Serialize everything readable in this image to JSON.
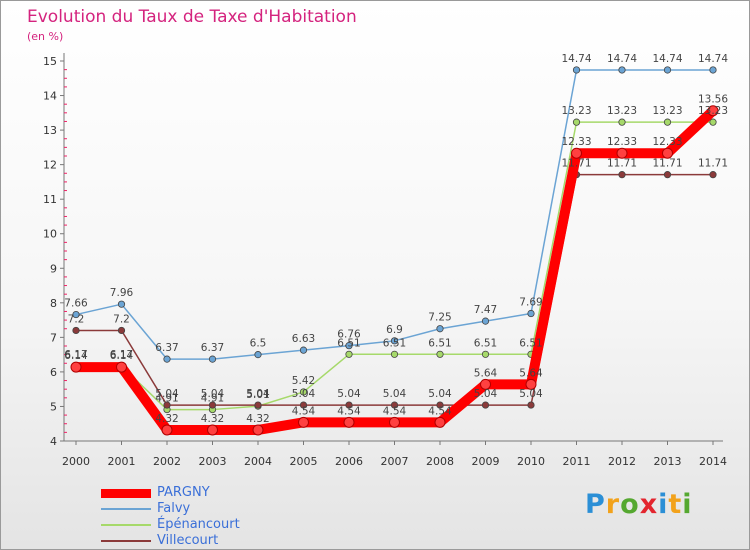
{
  "header": {
    "title": "Evolution du Taux de Taxe d'Habitation",
    "unit": "(en %)"
  },
  "chart_data": {
    "type": "line",
    "x": [
      "2000",
      "2001",
      "2002",
      "2003",
      "2004",
      "2005",
      "2006",
      "2007",
      "2008",
      "2009",
      "2010",
      "2011",
      "2012",
      "2013",
      "2014"
    ],
    "ylim": [
      4,
      15
    ],
    "yticks": [
      "4",
      "5",
      "6",
      "7",
      "8",
      "9",
      "10",
      "11",
      "12",
      "13",
      "14",
      "15"
    ],
    "grid": false,
    "legend": "bottom-left",
    "series": [
      {
        "name": "PARGNY",
        "color": "#ff0000",
        "values": [
          6.14,
          6.14,
          4.32,
          4.32,
          4.32,
          4.54,
          4.54,
          4.54,
          4.54,
          5.64,
          5.64,
          12.33,
          12.33,
          12.33,
          13.56
        ],
        "labels": [
          "6.14",
          "6.14",
          "4.32",
          "4.32",
          "4.32",
          "4.54",
          "4.54",
          "4.54",
          "4.54",
          "5.64",
          "5.64",
          "12.33",
          "12.33",
          "12.33",
          "13.56"
        ]
      },
      {
        "name": "Falvy",
        "color": "#6ba4d4",
        "values": [
          7.66,
          7.96,
          6.37,
          6.37,
          6.5,
          6.63,
          6.76,
          6.9,
          7.25,
          7.47,
          7.69,
          14.74,
          14.74,
          14.74,
          14.74
        ],
        "labels": [
          "7.66",
          "7.96",
          "6.37",
          "6.37",
          "6.5",
          "6.63",
          "6.76",
          "6.9",
          "7.25",
          "7.47",
          "7.69",
          "14.74",
          "14.74",
          "14.74",
          "14.74"
        ]
      },
      {
        "name": "Épénancourt",
        "color": "#a6d96a",
        "values": [
          6.17,
          6.17,
          4.91,
          4.91,
          5.01,
          5.42,
          6.51,
          6.51,
          6.51,
          6.51,
          6.51,
          13.23,
          13.23,
          13.23,
          13.23
        ],
        "labels": [
          "6.17",
          "6.17",
          "4.91",
          "4.91",
          "5.01",
          "5.42",
          "6.51",
          "6.51",
          "6.51",
          "6.51",
          "6.51",
          "13.23",
          "13.23",
          "13.23",
          "13.23"
        ]
      },
      {
        "name": "Villecourt",
        "color": "#8b3a3a",
        "values": [
          7.2,
          7.2,
          5.04,
          5.04,
          5.04,
          5.04,
          5.04,
          5.04,
          5.04,
          5.04,
          5.04,
          11.71,
          11.71,
          11.71,
          11.71
        ],
        "labels": [
          "7.2",
          "7.2",
          "5.04",
          "5.04",
          "5.04",
          "5.04",
          "5.04",
          "5.04",
          "5.04",
          "5.04",
          "5.04",
          "11.71",
          "11.71",
          "11.71",
          "11.71"
        ]
      }
    ]
  },
  "logo": {
    "letters": [
      "P",
      "r",
      "o",
      "x",
      "i",
      "t",
      "i"
    ]
  }
}
